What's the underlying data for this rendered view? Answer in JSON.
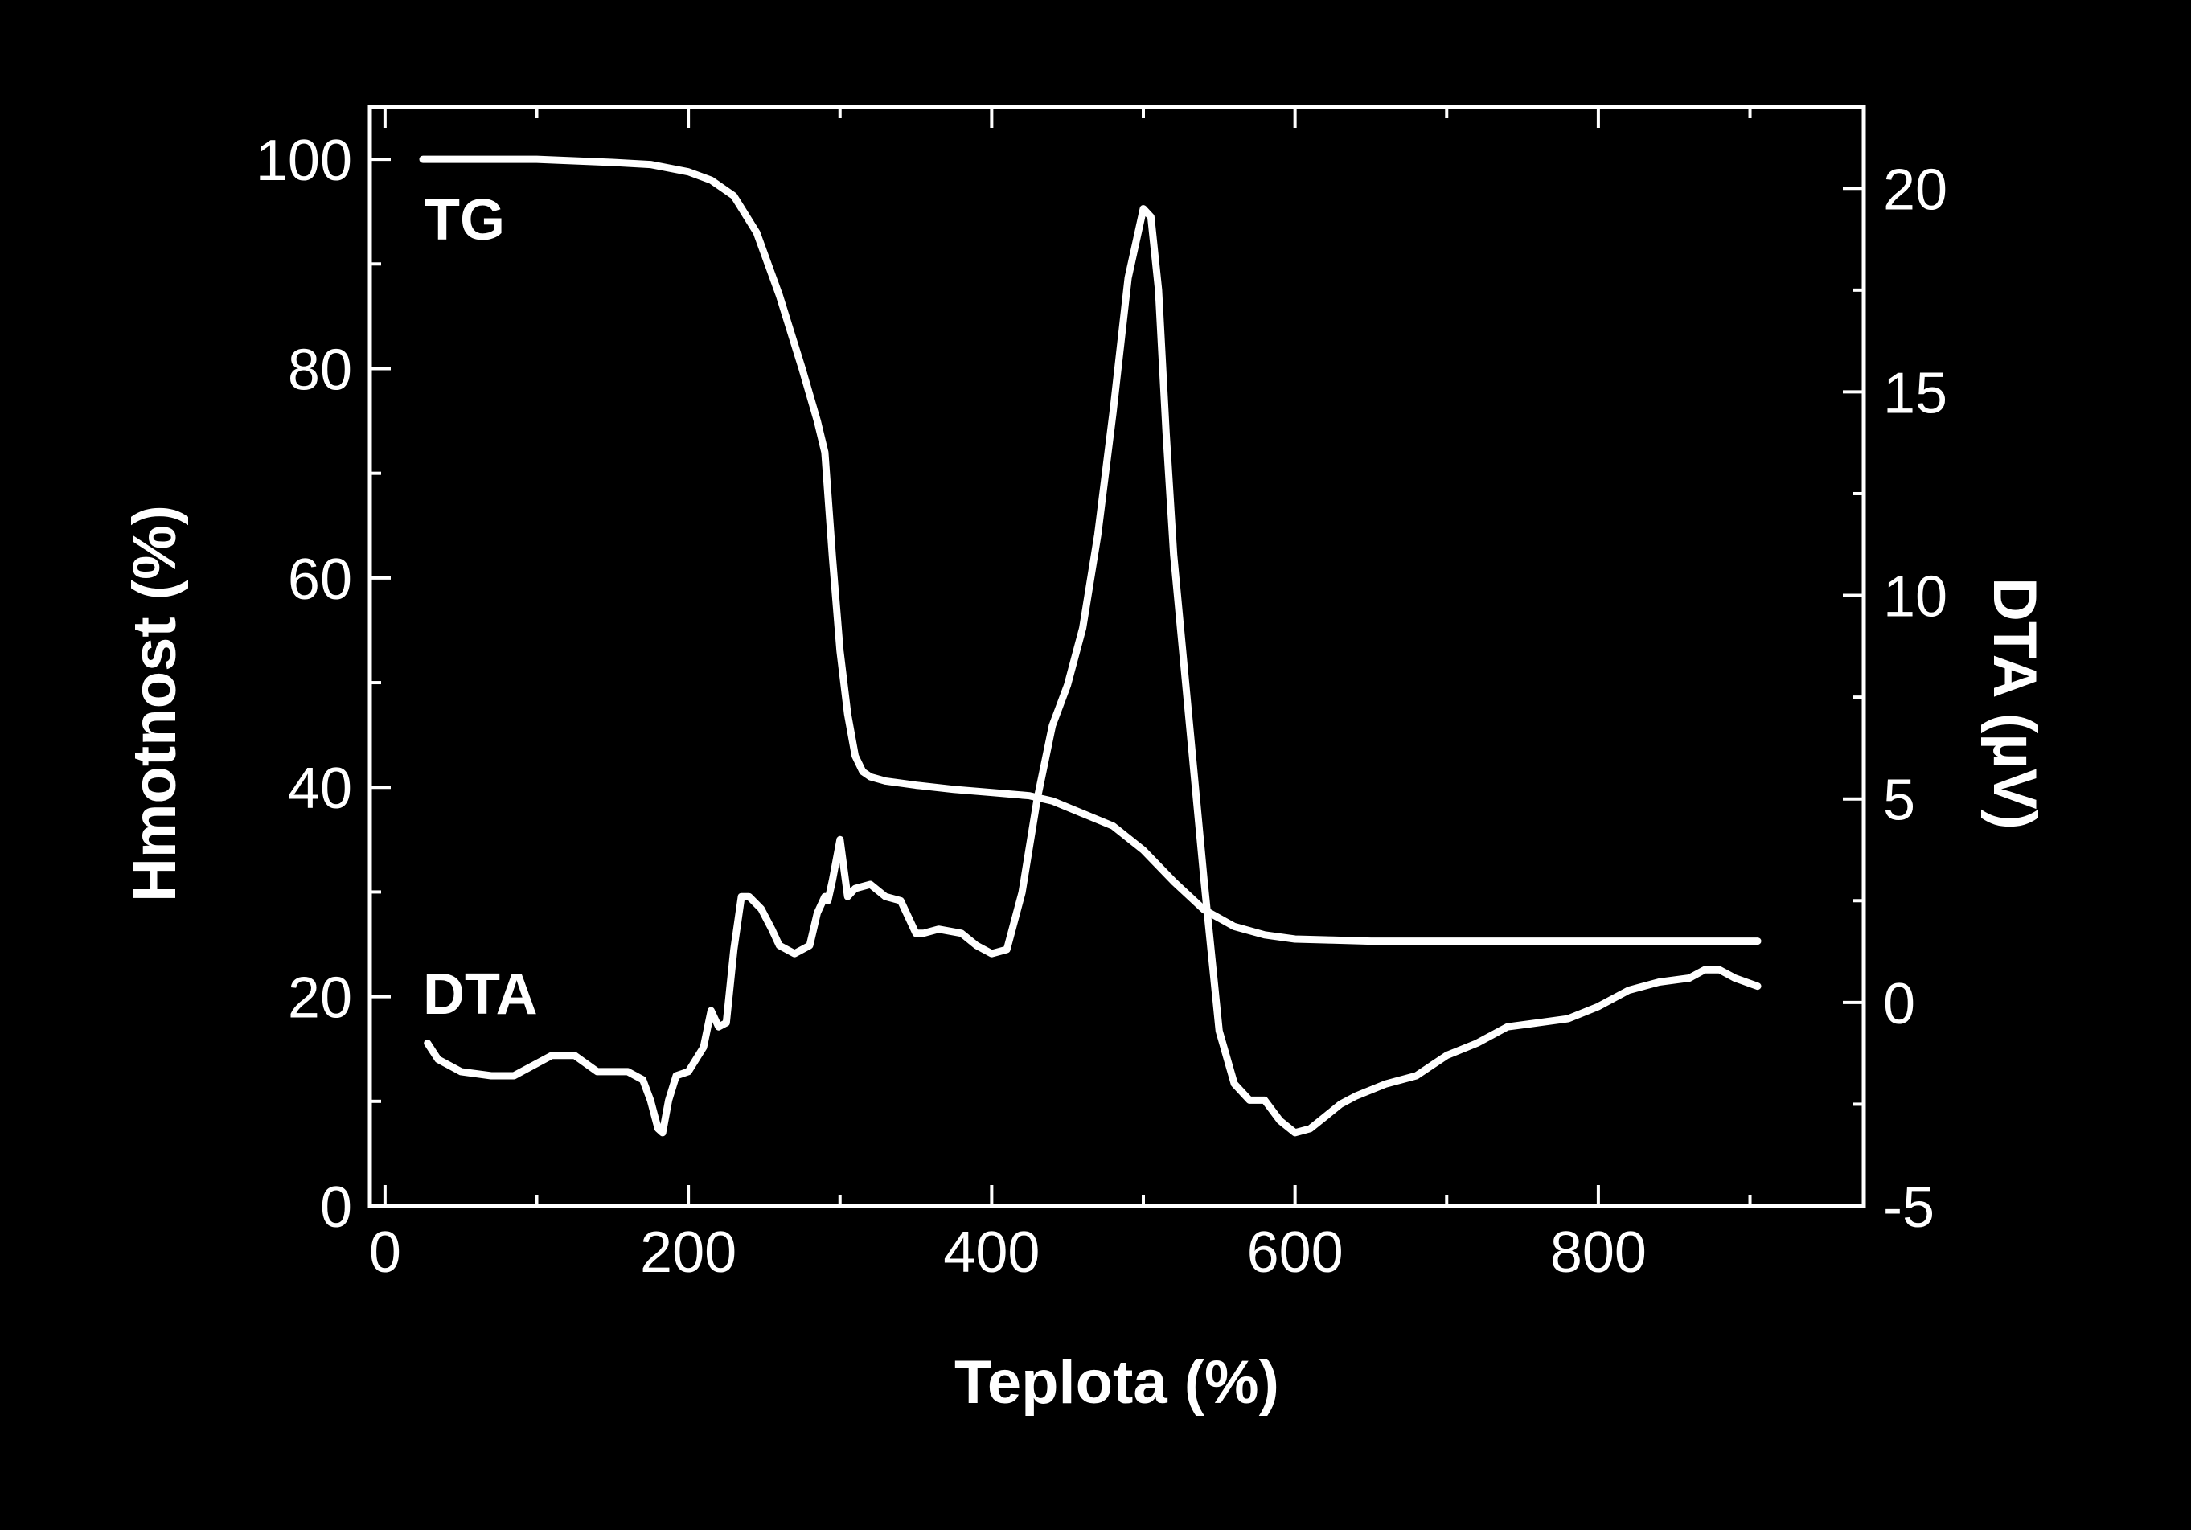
{
  "chart_data": {
    "type": "line",
    "xlabel": "Teplota (%)",
    "ylabel_left": "Hmotnost (%)",
    "ylabel_right": "DTA (µV)",
    "xlim": [
      -10,
      975
    ],
    "ylim_left": [
      0,
      105
    ],
    "ylim_right": [
      -5,
      22
    ],
    "x_ticks": [
      0,
      200,
      400,
      600,
      800
    ],
    "x_minor_ticks": [
      100,
      300,
      500,
      700,
      900
    ],
    "y_left_ticks": [
      0,
      20,
      40,
      60,
      80,
      100
    ],
    "y_left_minor_ticks": [
      10,
      30,
      50,
      70,
      90
    ],
    "y_right_ticks": [
      -5,
      0,
      5,
      10,
      15,
      20
    ],
    "y_right_minor_ticks": [
      -2.5,
      2.5,
      7.5,
      12.5,
      17.5
    ],
    "grid": false,
    "background": "#000000",
    "foreground": "#ffffff",
    "series": [
      {
        "name": "TG",
        "axis": "left",
        "x": [
          25,
          50,
          100,
          150,
          175,
          200,
          215,
          230,
          245,
          260,
          275,
          285,
          290,
          295,
          300,
          305,
          310,
          315,
          320,
          330,
          350,
          375,
          400,
          425,
          440,
          460,
          480,
          500,
          520,
          540,
          560,
          580,
          600,
          625,
          650,
          700,
          800,
          905
        ],
        "y": [
          100,
          100,
          100,
          99.7,
          99.5,
          98.8,
          98,
          96.5,
          93,
          87,
          80,
          75,
          72,
          62,
          53,
          47,
          43,
          41.5,
          41,
          40.6,
          40.2,
          39.8,
          39.5,
          39.2,
          38.7,
          37.5,
          36.3,
          34,
          31,
          28.3,
          26.7,
          25.9,
          25.5,
          25.4,
          25.3,
          25.3,
          25.3,
          25.3
        ]
      },
      {
        "name": "DTA",
        "axis": "right",
        "x": [
          28,
          35,
          50,
          70,
          85,
          100,
          110,
          125,
          140,
          150,
          160,
          170,
          175,
          180,
          183,
          187,
          192,
          200,
          210,
          215,
          220,
          225,
          230,
          235,
          240,
          248,
          255,
          260,
          270,
          280,
          285,
          290,
          292,
          295,
          300,
          305,
          310,
          320,
          330,
          340,
          350,
          355,
          365,
          380,
          390,
          400,
          410,
          420,
          430,
          440,
          450,
          460,
          470,
          480,
          490,
          500,
          505,
          510,
          515,
          520,
          530,
          540,
          550,
          560,
          570,
          580,
          590,
          600,
          610,
          620,
          630,
          640,
          660,
          680,
          700,
          720,
          740,
          760,
          780,
          800,
          820,
          840,
          860,
          870,
          880,
          890,
          905
        ],
        "y": [
          -1,
          -1.4,
          -1.7,
          -1.8,
          -1.8,
          -1.5,
          -1.3,
          -1.3,
          -1.7,
          -1.7,
          -1.7,
          -1.9,
          -2.4,
          -3.1,
          -3.2,
          -2.4,
          -1.8,
          -1.7,
          -1.1,
          -0.2,
          -0.6,
          -0.5,
          1.3,
          2.6,
          2.6,
          2.3,
          1.8,
          1.4,
          1.2,
          1.4,
          2.2,
          2.6,
          2.5,
          3,
          4,
          2.6,
          2.8,
          2.9,
          2.6,
          2.5,
          1.7,
          1.7,
          1.8,
          1.7,
          1.4,
          1.2,
          1.3,
          2.7,
          5,
          6.8,
          7.8,
          9.2,
          11.5,
          14.5,
          17.8,
          19.5,
          19.3,
          17.5,
          14,
          11,
          7,
          3,
          -0.7,
          -2,
          -2.4,
          -2.4,
          -2.9,
          -3.2,
          -3.1,
          -2.8,
          -2.5,
          -2.3,
          -2,
          -1.8,
          -1.3,
          -1,
          -0.6,
          -0.5,
          -0.4,
          -0.1,
          0.3,
          0.5,
          0.6,
          0.8,
          0.8,
          0.6,
          0.4
        ]
      }
    ],
    "annotations": [
      {
        "text": "TG",
        "series": "TG"
      },
      {
        "text": "DTA",
        "series": "DTA"
      }
    ]
  }
}
